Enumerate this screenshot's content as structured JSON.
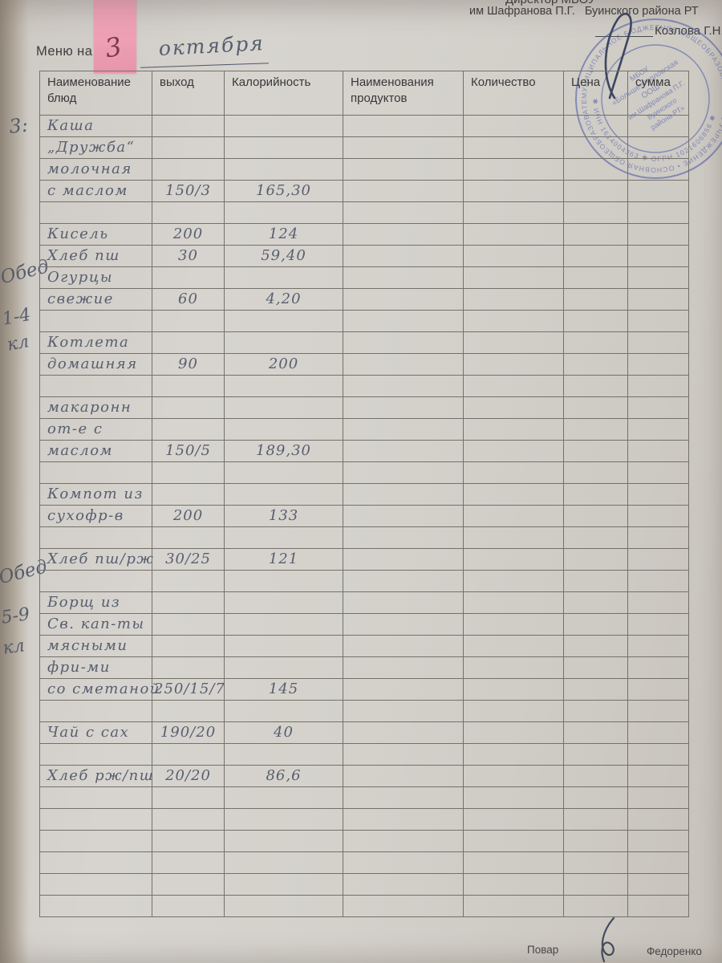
{
  "header": {
    "director_line1": "Директор МБОУ",
    "director_line2": "им Шафранова П.Г.   Буинского района РТ",
    "director_name": "Козлова Г.Н.",
    "menu_label": "Меню на «",
    "sticky_note_date": "3",
    "menu_month": "октября"
  },
  "stamp": {
    "ring_outer": "МУНИЦИПАЛЬНОЕ БЮДЖЕТНОЕ ОБЩЕОБРАЗОВАТЕЛЬНОЕ УЧРЕЖДЕНИЕ • ОСНОВНАЯ ОБЩЕОБРАЗОВАТЕЛЬНАЯ ШКОЛА •",
    "ring_inner": "✱ ИНН 1614004363 ✱ ОГРН 1021606856 ✱",
    "center_lines": [
      "МБОУ",
      "«Больше-Фроловская",
      "ООШ",
      "им.Шафранова П.Г.",
      "Буинского",
      "района РТ»"
    ]
  },
  "margin": {
    "meal_number": "3:",
    "lunch_primary": [
      "Обед",
      "1-4",
      "кл"
    ],
    "lunch_secondary": [
      "Обед",
      "5-9",
      "кл"
    ]
  },
  "table": {
    "headers": [
      "Наименование блюд",
      "выход",
      "Калорийность",
      "Наименования продуктов",
      "Количество",
      "Цена",
      "сумма"
    ],
    "rows": [
      {
        "dish": "Каша",
        "portion": "",
        "cal": ""
      },
      {
        "dish": "„Дружба“",
        "portion": "",
        "cal": ""
      },
      {
        "dish": "молочная",
        "portion": "",
        "cal": ""
      },
      {
        "dish": "с маслом",
        "portion": "150/3",
        "cal": "165,30"
      },
      {
        "dish": "",
        "portion": "",
        "cal": ""
      },
      {
        "dish": "Кисель",
        "portion": "200",
        "cal": "124"
      },
      {
        "dish": "Хлеб пш",
        "portion": "30",
        "cal": "59,40"
      },
      {
        "dish": "Огурцы",
        "portion": "",
        "cal": ""
      },
      {
        "dish": "свежие",
        "portion": "60",
        "cal": "4,20"
      },
      {
        "dish": "",
        "portion": "",
        "cal": ""
      },
      {
        "dish": "Котлета",
        "portion": "",
        "cal": ""
      },
      {
        "dish": "домашняя",
        "portion": "90",
        "cal": "200"
      },
      {
        "dish": "",
        "portion": "",
        "cal": ""
      },
      {
        "dish": "макаронн",
        "portion": "",
        "cal": ""
      },
      {
        "dish": "от-е с",
        "portion": "",
        "cal": ""
      },
      {
        "dish": "маслом",
        "portion": "150/5",
        "cal": "189,30"
      },
      {
        "dish": "",
        "portion": "",
        "cal": ""
      },
      {
        "dish": "Компот из",
        "portion": "",
        "cal": ""
      },
      {
        "dish": "сухофр-в",
        "portion": "200",
        "cal": "133"
      },
      {
        "dish": "",
        "portion": "",
        "cal": ""
      },
      {
        "dish": "Хлеб пш/рж",
        "portion": "30/25",
        "cal": "121"
      },
      {
        "dish": "",
        "portion": "",
        "cal": ""
      },
      {
        "dish": "Борщ из",
        "portion": "",
        "cal": ""
      },
      {
        "dish": "Св. кап-ты",
        "portion": "",
        "cal": ""
      },
      {
        "dish": "мясными",
        "portion": "",
        "cal": ""
      },
      {
        "dish": "фри-ми",
        "portion": "",
        "cal": ""
      },
      {
        "dish": "со сметаной",
        "portion": "250/15/7",
        "cal": "145"
      },
      {
        "dish": "",
        "portion": "",
        "cal": ""
      },
      {
        "dish": "Чай с сах",
        "portion": "190/20",
        "cal": "40"
      },
      {
        "dish": "",
        "portion": "",
        "cal": ""
      },
      {
        "dish": "Хлеб рж/пш",
        "portion": "20/20",
        "cal": "86,6"
      },
      {
        "dish": "",
        "portion": "",
        "cal": ""
      },
      {
        "dish": "",
        "portion": "",
        "cal": ""
      },
      {
        "dish": "",
        "portion": "",
        "cal": ""
      },
      {
        "dish": "",
        "portion": "",
        "cal": ""
      },
      {
        "dish": "",
        "portion": "",
        "cal": ""
      },
      {
        "dish": "",
        "portion": "",
        "cal": ""
      }
    ]
  },
  "footer": {
    "cook_label": "Повар",
    "cook_name": "Федоренко"
  },
  "colors": {
    "sticky_pink": "#ee9fb3",
    "handwriting_ink": "#575f6f",
    "stamp_blue": "#5263aa",
    "paper": "#d4d1cb"
  }
}
